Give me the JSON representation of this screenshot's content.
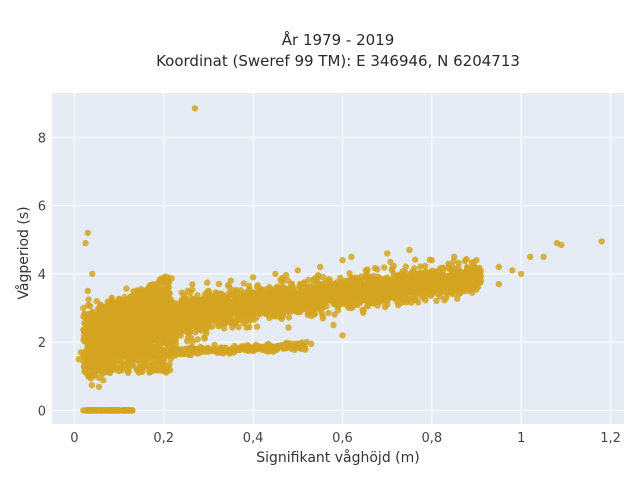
{
  "chart_data": {
    "type": "scatter",
    "title_line1": "År 1979 - 2019",
    "title_line2": "Koordinat (Sweref 99 TM): E 346946, N 6204713",
    "xlabel": "Signifikant våghöjd (m)",
    "ylabel": "Vågperiod (s)",
    "xlim": [
      -0.05,
      1.23
    ],
    "ylim": [
      -0.4,
      9.3
    ],
    "grid": true,
    "legend": "none",
    "x_ticks": [
      {
        "value": 0,
        "label": "0"
      },
      {
        "value": 0.2,
        "label": "0,2"
      },
      {
        "value": 0.4,
        "label": "0,4"
      },
      {
        "value": 0.6,
        "label": "0,6"
      },
      {
        "value": 0.8,
        "label": "0,8"
      },
      {
        "value": 1.0,
        "label": "1"
      },
      {
        "value": 1.2,
        "label": "1,2"
      }
    ],
    "y_ticks": [
      {
        "value": 0,
        "label": "0"
      },
      {
        "value": 2,
        "label": "2"
      },
      {
        "value": 4,
        "label": "4"
      },
      {
        "value": 6,
        "label": "6"
      },
      {
        "value": 8,
        "label": "8"
      }
    ],
    "colors": {
      "marker": "#d4a421",
      "plot_bg": "#e5ecf6",
      "grid": "#ffffff"
    },
    "series": [
      {
        "points": [
          [
            0.27,
            8.85
          ],
          [
            0.03,
            5.2
          ],
          [
            0.025,
            4.9
          ],
          [
            0.04,
            4.0
          ],
          [
            0.03,
            3.5
          ],
          [
            0.05,
            3.2
          ],
          [
            0.02,
            3.0
          ],
          [
            0.03,
            2.8
          ],
          [
            0.04,
            2.6
          ],
          [
            0.02,
            1.6
          ],
          [
            0.01,
            1.5
          ],
          [
            0.015,
            1.7
          ],
          [
            0.05,
            1.4
          ],
          [
            0.06,
            1.2
          ],
          [
            0.08,
            1.1
          ],
          [
            0.1,
            1.15
          ],
          [
            0.12,
            1.1
          ],
          [
            0.14,
            1.2
          ],
          [
            0.16,
            1.3
          ],
          [
            0.18,
            1.6
          ],
          [
            0.2,
            1.65
          ],
          [
            0.25,
            1.7
          ],
          [
            0.3,
            1.72
          ],
          [
            0.35,
            1.75
          ],
          [
            0.38,
            1.8
          ],
          [
            0.45,
            1.85
          ],
          [
            0.5,
            1.95
          ],
          [
            0.52,
            2.0
          ],
          [
            0.06,
            2.0
          ],
          [
            0.08,
            2.2
          ],
          [
            0.1,
            2.3
          ],
          [
            0.12,
            2.4
          ],
          [
            0.14,
            2.6
          ],
          [
            0.16,
            2.8
          ],
          [
            0.18,
            2.9
          ],
          [
            0.2,
            3.0
          ],
          [
            0.22,
            3.1
          ],
          [
            0.24,
            3.2
          ],
          [
            0.26,
            3.3
          ],
          [
            0.3,
            3.5
          ],
          [
            0.35,
            3.8
          ],
          [
            0.4,
            3.9
          ],
          [
            0.45,
            4.0
          ],
          [
            0.5,
            4.1
          ],
          [
            0.55,
            4.2
          ],
          [
            0.6,
            4.4
          ],
          [
            0.62,
            4.5
          ],
          [
            0.7,
            4.6
          ],
          [
            0.75,
            4.7
          ],
          [
            0.8,
            4.4
          ],
          [
            0.85,
            4.5
          ],
          [
            0.9,
            4.4
          ],
          [
            0.95,
            4.2
          ],
          [
            0.98,
            4.1
          ],
          [
            1.0,
            4.0
          ],
          [
            1.02,
            4.5
          ],
          [
            1.05,
            4.5
          ],
          [
            1.08,
            4.9
          ],
          [
            1.09,
            4.85
          ],
          [
            1.18,
            4.95
          ],
          [
            0.22,
            2.4
          ],
          [
            0.26,
            2.5
          ],
          [
            0.3,
            2.6
          ],
          [
            0.34,
            2.7
          ],
          [
            0.38,
            2.8
          ],
          [
            0.42,
            2.9
          ],
          [
            0.46,
            3.0
          ],
          [
            0.5,
            3.1
          ],
          [
            0.55,
            3.2
          ],
          [
            0.6,
            3.3
          ],
          [
            0.65,
            3.4
          ],
          [
            0.7,
            3.5
          ],
          [
            0.75,
            3.6
          ],
          [
            0.8,
            3.7
          ],
          [
            0.85,
            3.8
          ],
          [
            0.9,
            3.9
          ],
          [
            0.58,
            2.5
          ],
          [
            0.62,
            3.0
          ],
          [
            0.7,
            3.1
          ],
          [
            0.78,
            3.3
          ],
          [
            0.88,
            3.5
          ],
          [
            0.95,
            3.7
          ],
          [
            0.53,
            1.95
          ],
          [
            0.6,
            2.2
          ],
          [
            0.03,
            0.0
          ],
          [
            0.05,
            0.0
          ],
          [
            0.07,
            0.0
          ],
          [
            0.09,
            0.0
          ],
          [
            0.11,
            0.0
          ],
          [
            0.13,
            0.0
          ],
          [
            0.04,
            0.0
          ],
          [
            0.06,
            0.0
          ],
          [
            0.08,
            0.0
          ],
          [
            0.1,
            0.0
          ],
          [
            0.12,
            0.0
          ],
          [
            0.02,
            0.0
          ]
        ]
      }
    ]
  }
}
